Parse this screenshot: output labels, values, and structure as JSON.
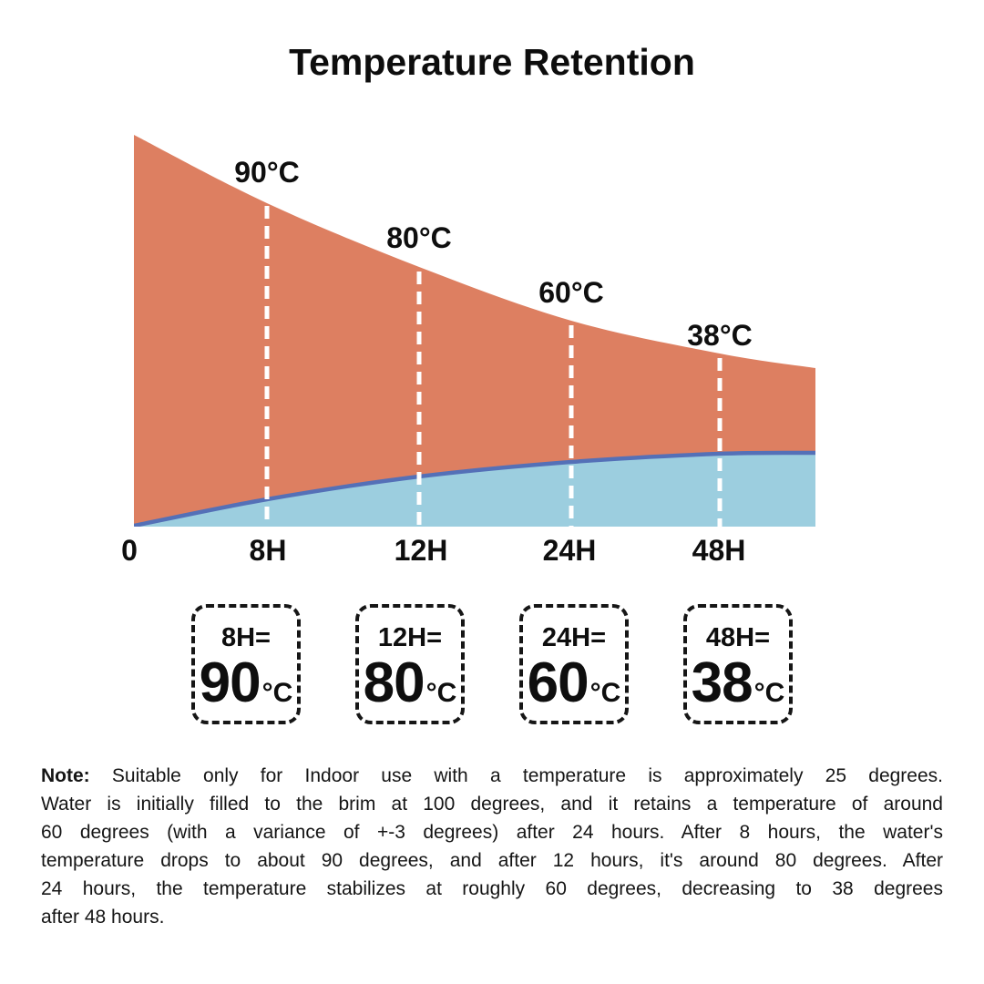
{
  "title": "Temperature Retention",
  "chart_data": {
    "type": "area",
    "title": "Temperature Retention",
    "x_tick_labels": [
      "0",
      "8H",
      "12H",
      "24H",
      "48H"
    ],
    "hours": [
      0,
      8,
      12,
      24,
      48
    ],
    "temperatures_c": [
      100,
      90,
      80,
      60,
      38
    ],
    "point_labels": [
      "90°C",
      "80°C",
      "60°C",
      "38°C"
    ],
    "legend": "none",
    "grid": "vertical white dashed guide lines at 8H, 12H, 24H and 48H",
    "colors": {
      "hot_area": "#DD7F61",
      "cool_area": "#9CCEDF",
      "cool_line": "#5470B7",
      "guides": "#FFFFFF",
      "text": "#111111"
    }
  },
  "callouts": [
    {
      "label": "8H=",
      "value": "90",
      "unit": "°C"
    },
    {
      "label": "12H=",
      "value": "80",
      "unit": "°C"
    },
    {
      "label": "24H=",
      "value": "60",
      "unit": "°C"
    },
    {
      "label": "48H=",
      "value": "38",
      "unit": "°C"
    }
  ],
  "note": {
    "label": "Note:",
    "line1_rest": " Suitable only for Indoor use with a temperature is approximately 25 degrees.",
    "line2": "Water is initially filled to the brim at 100 degrees, and it retains a temperature of around",
    "line3": "60 degrees (with a variance of +-3 degrees) after 24 hours. After 8 hours, the water's",
    "line4": "temperature drops to about 90 degrees, and after 12 hours, it's around 80 degrees. After",
    "line5": "24 hours, the temperature stabilizes at roughly 60 degrees, decreasing to 38 degrees",
    "line6": "after 48 hours."
  }
}
